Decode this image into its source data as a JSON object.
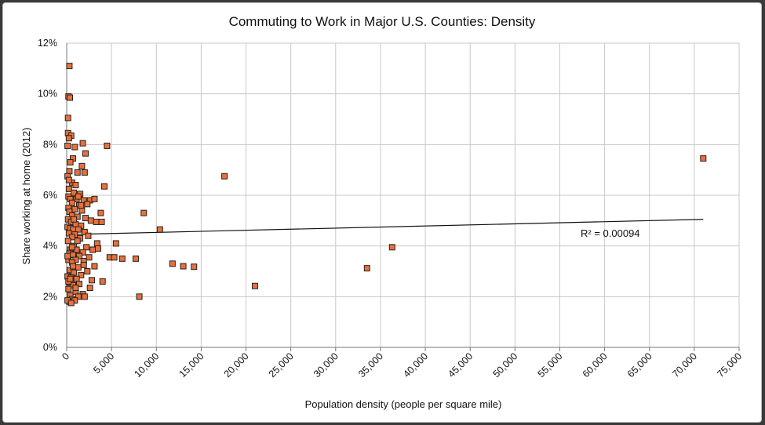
{
  "chart_data": {
    "type": "scatter",
    "title": "Commuting to Work in Major U.S. Counties: Density",
    "xlabel": "Population density (people per square mile)",
    "ylabel": "Share working at home (2012)",
    "xlim": [
      0,
      75000
    ],
    "ylim": [
      0,
      12
    ],
    "x_ticks": [
      0,
      5000,
      10000,
      15000,
      20000,
      25000,
      30000,
      35000,
      40000,
      45000,
      50000,
      55000,
      60000,
      65000,
      70000,
      75000
    ],
    "x_tick_labels": [
      "0",
      "5,000",
      "10,000",
      "15,000",
      "20,000",
      "25,000",
      "30,000",
      "35,000",
      "40,000",
      "45,000",
      "50,000",
      "55,000",
      "60,000",
      "65,000",
      "70,000",
      "75,000"
    ],
    "y_ticks": [
      0,
      2,
      4,
      6,
      8,
      10,
      12
    ],
    "y_tick_labels": [
      "0%",
      "2%",
      "4%",
      "6%",
      "8%",
      "10%",
      "12%"
    ],
    "grid": true,
    "marker_color": "#e8703a",
    "marker_edge_color": "#222222",
    "trendline": {
      "x": [
        0,
        71000
      ],
      "y": [
        4.45,
        5.05
      ],
      "r2_label": "R² = 0.00094",
      "color": "#111111"
    },
    "points": [
      [
        300,
        11.1
      ],
      [
        200,
        9.9
      ],
      [
        350,
        9.85
      ],
      [
        150,
        9.05
      ],
      [
        150,
        8.45
      ],
      [
        500,
        8.35
      ],
      [
        250,
        8.25
      ],
      [
        100,
        7.95
      ],
      [
        900,
        7.9
      ],
      [
        1800,
        8.05
      ],
      [
        4500,
        7.95
      ],
      [
        2100,
        7.65
      ],
      [
        700,
        7.45
      ],
      [
        400,
        7.3
      ],
      [
        1700,
        7.15
      ],
      [
        1200,
        6.9
      ],
      [
        300,
        6.95
      ],
      [
        2000,
        6.9
      ],
      [
        100,
        6.75
      ],
      [
        17600,
        6.75
      ],
      [
        71000,
        7.45
      ],
      [
        4200,
        6.35
      ],
      [
        600,
        6.5
      ],
      [
        1000,
        6.4
      ],
      [
        250,
        6.25
      ],
      [
        800,
        6.1
      ],
      [
        1500,
        6.05
      ],
      [
        200,
        5.95
      ],
      [
        400,
        5.85
      ],
      [
        1100,
        5.85
      ],
      [
        1900,
        5.8
      ],
      [
        2600,
        5.8
      ],
      [
        3100,
        5.85
      ],
      [
        600,
        5.7
      ],
      [
        1400,
        5.6
      ],
      [
        2300,
        5.65
      ],
      [
        200,
        5.5
      ],
      [
        900,
        5.45
      ],
      [
        1700,
        5.4
      ],
      [
        300,
        5.35
      ],
      [
        3800,
        5.3
      ],
      [
        8600,
        5.3
      ],
      [
        600,
        5.2
      ],
      [
        1200,
        5.15
      ],
      [
        2100,
        5.1
      ],
      [
        150,
        5.05
      ],
      [
        2700,
        5.0
      ],
      [
        3300,
        4.95
      ],
      [
        3900,
        4.95
      ],
      [
        500,
        4.95
      ],
      [
        1000,
        4.85
      ],
      [
        1600,
        4.8
      ],
      [
        100,
        4.75
      ],
      [
        400,
        4.7
      ],
      [
        700,
        4.65
      ],
      [
        1300,
        4.65
      ],
      [
        10400,
        4.65
      ],
      [
        2000,
        4.55
      ],
      [
        250,
        4.5
      ],
      [
        900,
        4.45
      ],
      [
        600,
        4.35
      ],
      [
        1500,
        4.3
      ],
      [
        150,
        4.2
      ],
      [
        3400,
        4.1
      ],
      [
        5500,
        4.1
      ],
      [
        800,
        4.0
      ],
      [
        2200,
        3.95
      ],
      [
        36300,
        3.95
      ],
      [
        400,
        3.85
      ],
      [
        1100,
        3.85
      ],
      [
        2900,
        3.85
      ],
      [
        1800,
        3.75
      ],
      [
        300,
        3.7
      ],
      [
        700,
        3.65
      ],
      [
        1400,
        3.6
      ],
      [
        2500,
        3.55
      ],
      [
        4800,
        3.55
      ],
      [
        5300,
        3.55
      ],
      [
        6200,
        3.5
      ],
      [
        7700,
        3.5
      ],
      [
        200,
        3.45
      ],
      [
        1000,
        3.45
      ],
      [
        1900,
        3.4
      ],
      [
        600,
        3.35
      ],
      [
        11800,
        3.3
      ],
      [
        13000,
        3.2
      ],
      [
        14200,
        3.18
      ],
      [
        33500,
        3.12
      ],
      [
        3100,
        3.2
      ],
      [
        1300,
        3.15
      ],
      [
        350,
        3.05
      ],
      [
        2300,
        3.0
      ],
      [
        800,
        2.95
      ],
      [
        1600,
        2.85
      ],
      [
        100,
        2.8
      ],
      [
        500,
        2.75
      ],
      [
        1100,
        2.7
      ],
      [
        2800,
        2.65
      ],
      [
        4000,
        2.6
      ],
      [
        300,
        2.55
      ],
      [
        1400,
        2.5
      ],
      [
        700,
        2.45
      ],
      [
        21000,
        2.42
      ],
      [
        2600,
        2.35
      ],
      [
        200,
        2.3
      ],
      [
        1000,
        2.2
      ],
      [
        1800,
        2.1
      ],
      [
        400,
        2.05
      ],
      [
        8100,
        2.0
      ],
      [
        1300,
        2.0
      ],
      [
        2000,
        2.0
      ],
      [
        600,
        1.9
      ],
      [
        300,
        1.8
      ],
      [
        100,
        1.85
      ],
      [
        900,
        1.85
      ],
      [
        500,
        1.75
      ],
      [
        200,
        2.6
      ],
      [
        700,
        3.2
      ],
      [
        1200,
        4.2
      ],
      [
        2400,
        4.4
      ],
      [
        100,
        3.6
      ],
      [
        3500,
        3.9
      ],
      [
        800,
        5.05
      ],
      [
        1600,
        5.6
      ],
      [
        250,
        6.6
      ],
      [
        1300,
        5.95
      ],
      [
        600,
        3.95
      ],
      [
        1900,
        3.25
      ],
      [
        400,
        2.7
      ],
      [
        1000,
        2.35
      ]
    ]
  }
}
